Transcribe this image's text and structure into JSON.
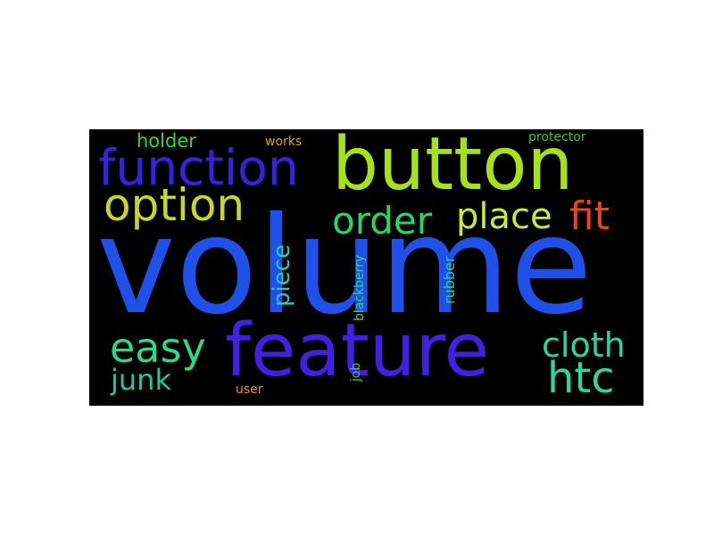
{
  "wordcloud": {
    "background_color": "#000000",
    "words": [
      {
        "id": "volume",
        "text": "volume",
        "color": "#1f51e8"
      },
      {
        "id": "button",
        "text": "button",
        "color": "#a8e01c"
      },
      {
        "id": "feature",
        "text": "feature",
        "color": "#4320e0"
      },
      {
        "id": "function",
        "text": "function",
        "color": "#3a1fe0"
      },
      {
        "id": "option",
        "text": "option",
        "color": "#c8d621"
      },
      {
        "id": "order",
        "text": "order",
        "color": "#22d868"
      },
      {
        "id": "place",
        "text": "place",
        "color": "#c8e93a"
      },
      {
        "id": "fit",
        "text": "fit",
        "color": "#e8461f"
      },
      {
        "id": "easy",
        "text": "easy",
        "color": "#2bd98b"
      },
      {
        "id": "cloth",
        "text": "cloth",
        "color": "#27d6a6"
      },
      {
        "id": "htc",
        "text": "htc",
        "color": "#2bd6a0"
      },
      {
        "id": "junk",
        "text": "junk",
        "color": "#22c7a0"
      },
      {
        "id": "piece",
        "text": "piece",
        "color": "#26cdc0"
      },
      {
        "id": "holder",
        "text": "holder",
        "color": "#3cd23c"
      },
      {
        "id": "works",
        "text": "works",
        "color": "#c8a830"
      },
      {
        "id": "protector",
        "text": "protector",
        "color": "#33c833"
      },
      {
        "id": "blackberry",
        "text": "blackberry",
        "color": "#2bd67a"
      },
      {
        "id": "rubber",
        "text": "rubber",
        "color": "#33d080"
      },
      {
        "id": "job",
        "text": "job",
        "color": "#2ed06b"
      },
      {
        "id": "user",
        "text": "user",
        "color": "#e8912a"
      }
    ]
  }
}
